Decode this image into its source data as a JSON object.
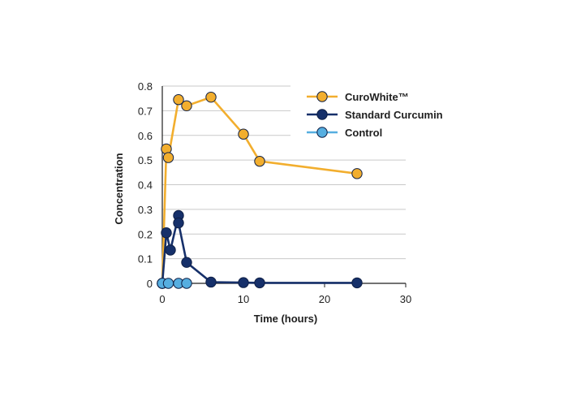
{
  "chart_data": {
    "type": "line",
    "title": "",
    "xlabel": "Time (hours)",
    "ylabel": "Concentration",
    "xlim": [
      0,
      30
    ],
    "ylim": [
      0,
      0.8
    ],
    "x_ticks": [
      0,
      10,
      20,
      30
    ],
    "y_ticks": [
      0,
      0.1,
      0.2,
      0.3,
      0.4,
      0.5,
      0.6,
      0.7,
      0.8
    ],
    "x_tick_labels": [
      "0",
      "10",
      "20",
      "30"
    ],
    "y_tick_labels": [
      "0",
      "0.1",
      "0.2",
      "0.3",
      "0.4",
      "0.5",
      "0.6",
      "0.7",
      "0.8"
    ],
    "grid": "horizontal",
    "legend_position": "top-right",
    "series": [
      {
        "name": "CuroWhite™",
        "color": "#F2AE2E",
        "x": [
          0,
          0.5,
          0.75,
          2,
          3,
          6,
          10,
          12,
          24
        ],
        "y": [
          0,
          0.545,
          0.51,
          0.745,
          0.72,
          0.755,
          0.605,
          0.495,
          0.445
        ]
      },
      {
        "name": "Standard Curcumin",
        "color": "#16306A",
        "x": [
          0,
          0.5,
          1,
          2,
          2,
          3,
          6,
          10,
          12,
          24
        ],
        "y": [
          0,
          0.205,
          0.135,
          0.275,
          0.245,
          0.085,
          0.005,
          0.003,
          0.002,
          0.002
        ]
      },
      {
        "name": "Control",
        "color": "#56AEE0",
        "x": [
          0,
          0.75,
          2,
          3
        ],
        "y": [
          0,
          0,
          0,
          0
        ]
      }
    ]
  }
}
